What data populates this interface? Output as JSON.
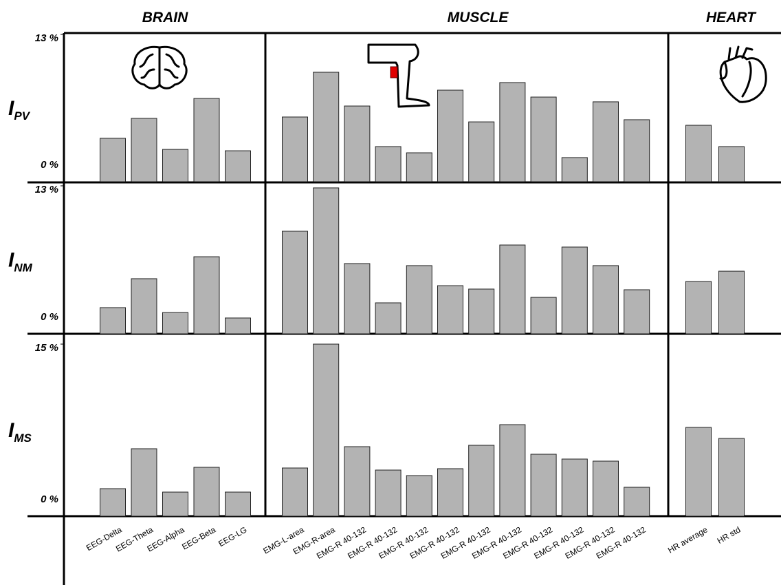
{
  "chart_data": {
    "type": "bar",
    "color": "#b3b3b3",
    "groups": [
      {
        "title": "BRAIN",
        "categories": [
          "EEG-Delta",
          "EEG-Theta",
          "EEG-Alpha",
          "EEG-Beta",
          "EEG-LG"
        ]
      },
      {
        "title": "MUSCLE",
        "categories": [
          "EMG-L-area",
          "EMG-R-area",
          "EMG-R 40-132",
          "EMG-R 40-132",
          "EMG-R 40-132",
          "EMG-R 40-132",
          "EMG-R 40-132",
          "EMG-R 40-132",
          "EMG-R 40-132",
          "EMG-R 40-132",
          "EMG-R 40-132",
          "EMG-R 40-132"
        ]
      },
      {
        "title": "HEART",
        "categories": [
          "HR average",
          "HR std"
        ]
      }
    ],
    "rows": [
      {
        "label": {
          "main": "I",
          "sub": "PV"
        },
        "ylim": [
          0,
          13
        ],
        "yticks": [
          {
            "value": 0,
            "label": "0 %"
          },
          {
            "value": 13,
            "label": "13 %"
          }
        ],
        "values": [
          [
            3.83,
            5.59,
            2.85,
            7.35,
            2.73
          ],
          [
            5.71,
            9.66,
            6.68,
            3.1,
            2.55,
            8.08,
            5.28,
            8.75,
            7.47,
            2.13,
            7.05,
            5.47
          ],
          [
            4.98,
            3.1
          ]
        ]
      },
      {
        "label": {
          "main": "I",
          "sub": "NM"
        },
        "ylim": [
          0,
          13
        ],
        "yticks": [
          {
            "value": 0,
            "label": "0 %"
          },
          {
            "value": 13,
            "label": "13 %"
          }
        ],
        "values": [
          [
            2.3,
            4.84,
            1.87,
            6.77,
            1.39
          ],
          [
            9.01,
            12.82,
            6.17,
            2.72,
            5.99,
            4.23,
            3.93,
            7.8,
            3.2,
            7.62,
            5.99,
            3.87
          ],
          [
            4.6,
            5.5
          ]
        ]
      },
      {
        "label": {
          "main": "I",
          "sub": "MS"
        },
        "ylim": [
          0,
          15
        ],
        "yticks": [
          {
            "value": 0,
            "label": "0 %"
          },
          {
            "value": 15,
            "label": "15 %"
          }
        ],
        "values": [
          [
            2.4,
            5.88,
            2.1,
            4.26,
            2.1
          ],
          [
            4.2,
            15.0,
            6.06,
            4.02,
            3.54,
            4.14,
            6.18,
            7.98,
            5.4,
            4.98,
            4.8,
            2.52
          ],
          [
            7.74,
            6.78
          ]
        ]
      }
    ]
  }
}
